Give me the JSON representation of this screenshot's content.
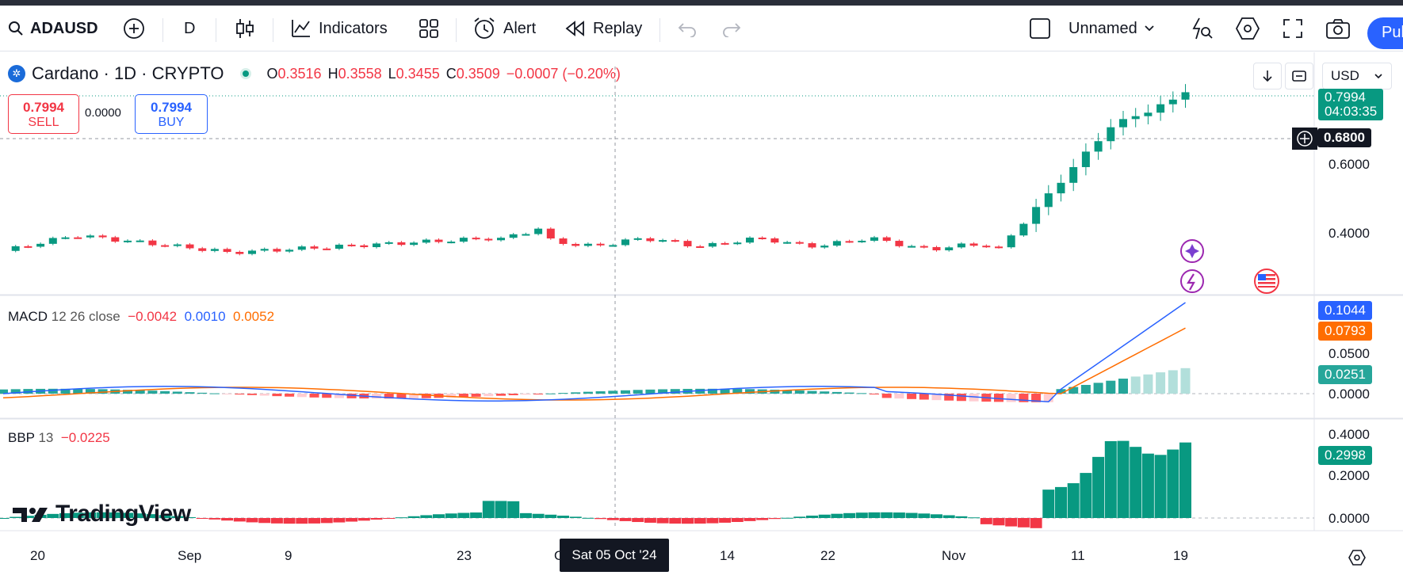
{
  "toolbar": {
    "symbol": "ADAUSD",
    "interval": "D",
    "indicators_label": "Indicators",
    "alert_label": "Alert",
    "replay_label": "Replay",
    "layout_name": "Unnamed",
    "publish_label": "Pub"
  },
  "legend": {
    "title": "Cardano · 1D · CRYPTO",
    "o_label": "O",
    "o_value": "0.3516",
    "h_label": "H",
    "h_value": "0.3558",
    "l_label": "L",
    "l_value": "0.3455",
    "c_label": "C",
    "c_value": "0.3509",
    "change": "−0.0007 (−0.20%)"
  },
  "trade": {
    "sell_price": "0.7994",
    "sell_label": "SELL",
    "spread": "0.0000",
    "buy_price": "0.7994",
    "buy_label": "BUY"
  },
  "currency": "USD",
  "price_axis": {
    "labels": [
      "0.6000",
      "0.4000"
    ],
    "last_price": "0.7994",
    "countdown": "04:03:35",
    "crosshair_price": "0.6800"
  },
  "macd": {
    "title": "MACD",
    "params": "12 26 close",
    "hist": "−0.0042",
    "macd": "0.0010",
    "signal": "0.0052",
    "axis_labels": [
      "0.0500",
      "0.0000"
    ],
    "tag_macd": "0.1044",
    "tag_signal": "0.0793",
    "tag_hist": "0.0251"
  },
  "bbp": {
    "title": "BBP",
    "params": "13",
    "value": "−0.0225",
    "axis_labels": [
      "0.4000",
      "0.2000",
      "0.0000"
    ],
    "tag": "0.2998"
  },
  "time_axis": {
    "labels": [
      "20",
      "Sep",
      "9",
      "23",
      "O",
      "14",
      "22",
      "Nov",
      "11",
      "19"
    ],
    "crosshair_date": "Sat 05 Oct '24"
  },
  "brand": "TradingView",
  "colors": {
    "up": "#089981",
    "down": "#f23645",
    "macd_line": "#2962ff",
    "signal_line": "#ff6d00",
    "hist_light": "#b2dfdb"
  }
}
